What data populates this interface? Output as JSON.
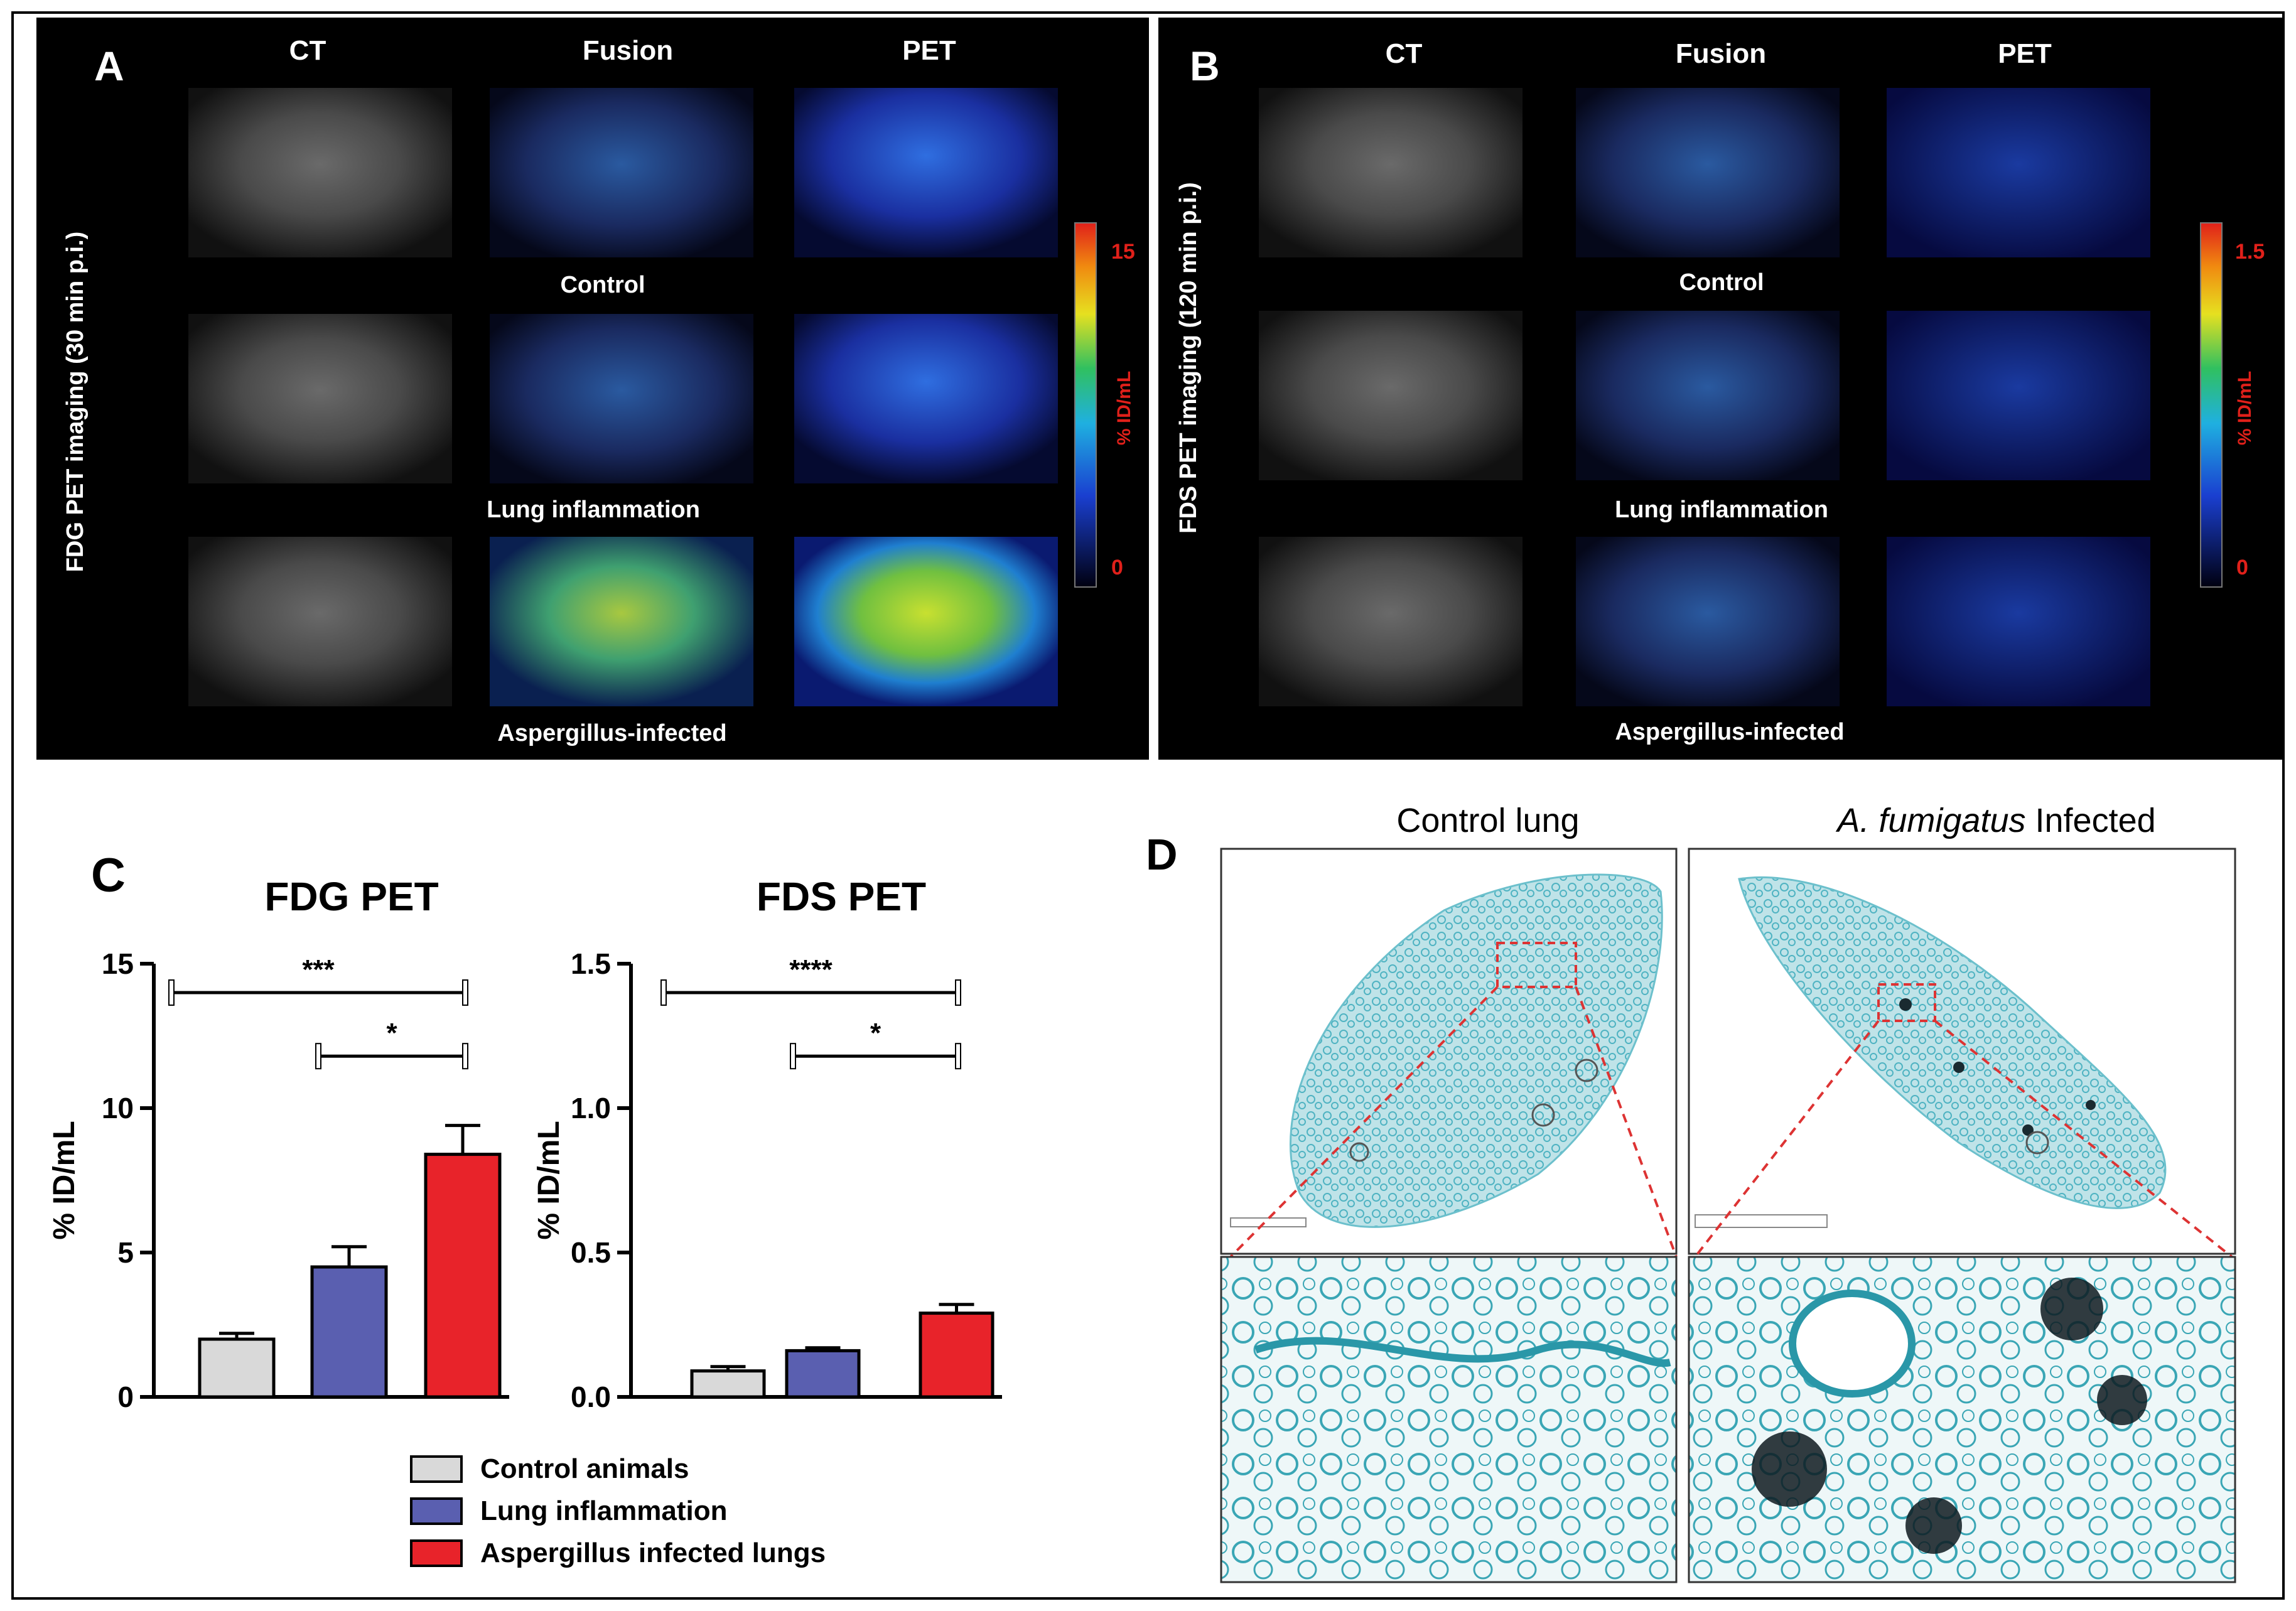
{
  "panel_a": {
    "letter": "A",
    "side_label": "FDG PET imaging (30 min p.i.)",
    "columns": [
      "CT",
      "Fusion",
      "PET"
    ],
    "rows": [
      "Control",
      "Lung inflammation",
      "Aspergillus-infected"
    ],
    "colorbar": {
      "max": "15",
      "min": "0",
      "unit": "% ID/mL"
    }
  },
  "panel_b": {
    "letter": "B",
    "side_label": "FDS PET imaging (120 min p.i.)",
    "columns": [
      "CT",
      "Fusion",
      "PET"
    ],
    "rows": [
      "Control",
      "Lung inflammation",
      "Aspergillus-infected"
    ],
    "colorbar": {
      "max": "1.5",
      "min": "0",
      "unit": "% ID/mL"
    }
  },
  "panel_c": {
    "letter": "C"
  },
  "panel_d": {
    "letter": "D",
    "title_left": "Control lung",
    "title_right_italic": "A. fumigatus",
    "title_right_rest": " Infected"
  },
  "colors": {
    "control": "#d9d9d9",
    "inflammation": "#5a5fb0",
    "infected": "#e8232a",
    "stain": "#3aa6b5",
    "background": "#000000"
  },
  "chart_data": [
    {
      "type": "bar",
      "title": "FDG PET",
      "ylabel": "% ID/mL",
      "ylim": [
        0,
        15
      ],
      "yticks": [
        "0",
        "5",
        "10",
        "15"
      ],
      "ytick_values": [
        0,
        5,
        10,
        15
      ],
      "categories": [
        "Control animals",
        "Lung inflammation",
        "Aspergillus infected lungs"
      ],
      "values": [
        2.0,
        4.5,
        8.4
      ],
      "errors": [
        0.2,
        0.7,
        1.0
      ],
      "significance": [
        {
          "from": 0,
          "to": 2,
          "label": "***",
          "level": 14.0
        },
        {
          "from": 1,
          "to": 2,
          "label": "*",
          "level": 11.8
        }
      ]
    },
    {
      "type": "bar",
      "title": "FDS PET",
      "ylabel": "% ID/mL",
      "ylim": [
        0,
        1.5
      ],
      "yticks": [
        "0.0",
        "0.5",
        "1.0",
        "1.5"
      ],
      "ytick_values": [
        0,
        0.5,
        1.0,
        1.5
      ],
      "categories": [
        "Control animals",
        "Lung inflammation",
        "Aspergillus infected lungs"
      ],
      "values": [
        0.09,
        0.16,
        0.29
      ],
      "errors": [
        0.015,
        0.01,
        0.03
      ],
      "significance": [
        {
          "from": 0,
          "to": 2,
          "label": "****",
          "level": 1.4
        },
        {
          "from": 1,
          "to": 2,
          "label": "*",
          "level": 1.18
        }
      ]
    }
  ],
  "legend": {
    "items": [
      "Control animals",
      "Lung inflammation",
      "Aspergillus infected lungs"
    ]
  }
}
